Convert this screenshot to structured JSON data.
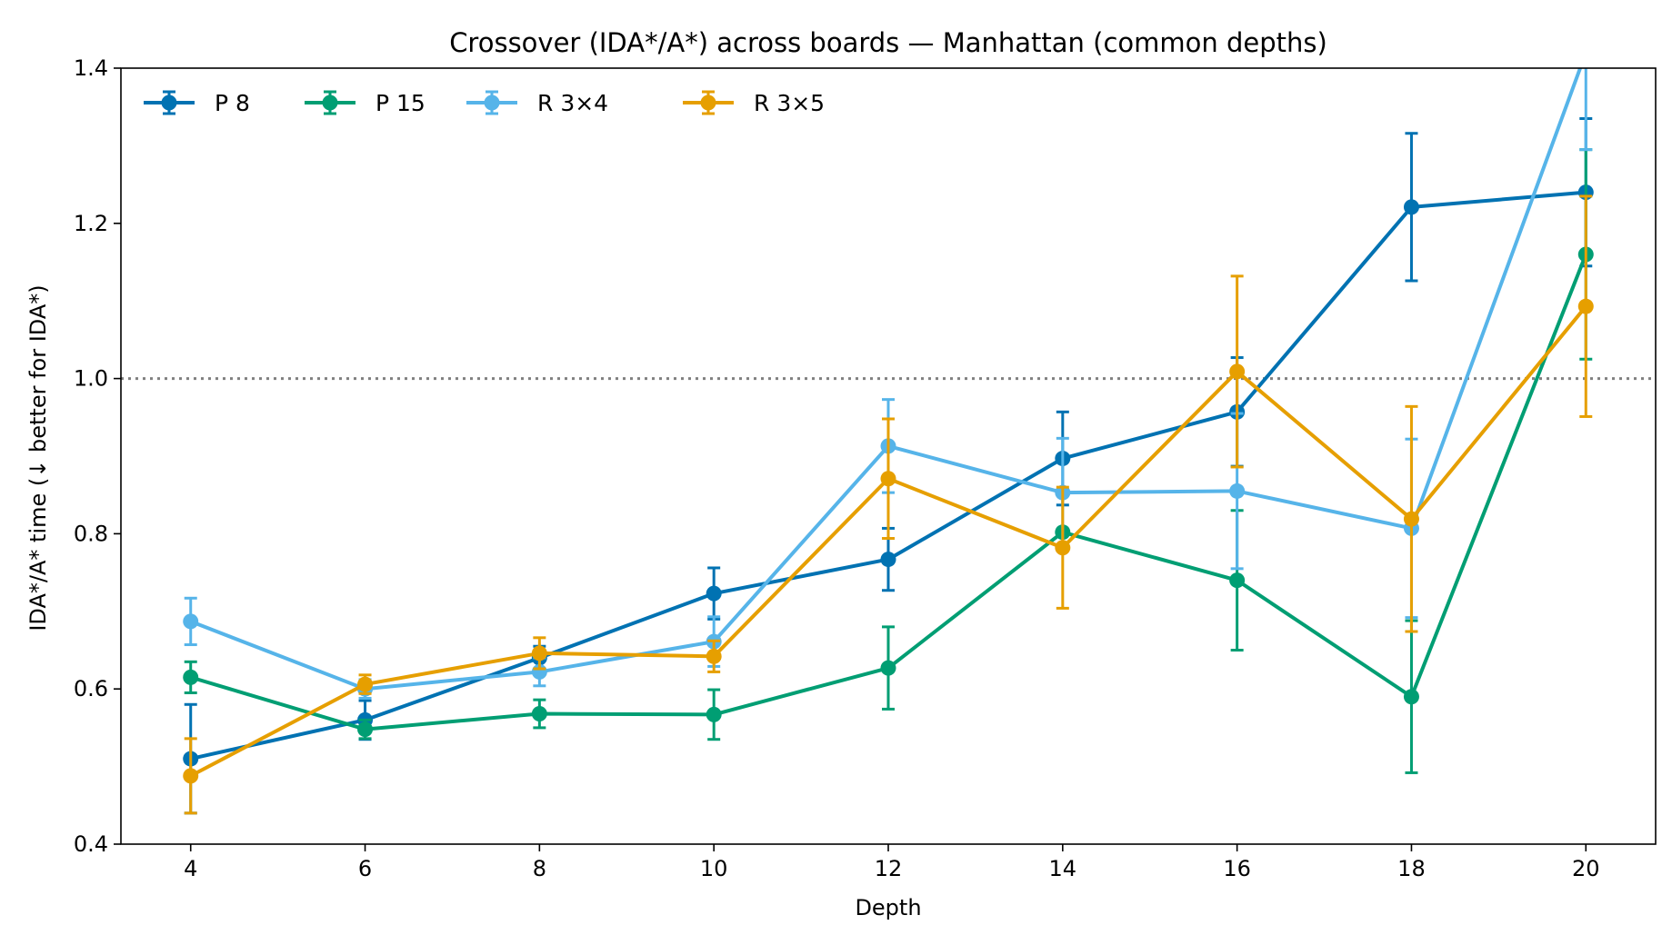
{
  "chart_data": {
    "type": "line",
    "title": "Crossover (IDA*/A*) across boards — Manhattan (common depths)",
    "xlabel": "Depth",
    "ylabel": "IDA*/A* time (↓ better for IDA*)",
    "x": [
      4,
      6,
      8,
      10,
      12,
      14,
      16,
      18,
      20
    ],
    "xticks": [
      "4",
      "6",
      "8",
      "10",
      "12",
      "14",
      "16",
      "18",
      "20"
    ],
    "xlim": [
      3.2,
      20.8
    ],
    "ylim": [
      0.4,
      1.4
    ],
    "yticks": [
      "0.4",
      "0.6",
      "0.8",
      "1.0",
      "1.2",
      "1.4"
    ],
    "reference_line": {
      "y": 1.0,
      "style": "dotted",
      "color": "#808080"
    },
    "legend": {
      "position": "top-left",
      "columns": 4
    },
    "series": [
      {
        "name": "P 8",
        "color": "#0072B2",
        "values": [
          0.51,
          0.56,
          0.64,
          0.723,
          0.767,
          0.897,
          0.957,
          1.221,
          1.24
        ],
        "err": [
          0.07,
          0.025,
          0.015,
          0.033,
          0.04,
          0.06,
          0.07,
          0.095,
          0.095
        ]
      },
      {
        "name": "P 15",
        "color": "#009E73",
        "values": [
          0.615,
          0.548,
          0.568,
          0.567,
          0.627,
          0.802,
          0.74,
          0.59,
          1.16
        ],
        "err": [
          0.02,
          0.012,
          0.018,
          0.032,
          0.053,
          0.0,
          0.09,
          0.098,
          0.135
        ]
      },
      {
        "name": "R 3×4",
        "color": "#56B4E9",
        "values": [
          0.687,
          0.6,
          0.622,
          0.661,
          0.913,
          0.853,
          0.855,
          0.807,
          1.42
        ],
        "err": [
          0.03,
          0.012,
          0.018,
          0.032,
          0.06,
          0.07,
          0.1,
          0.115,
          0.125
        ]
      },
      {
        "name": "R 3×5",
        "color": "#E69F00",
        "values": [
          0.488,
          0.606,
          0.646,
          0.642,
          0.871,
          0.782,
          1.009,
          0.819,
          1.093
        ],
        "err": [
          0.048,
          0.012,
          0.02,
          0.02,
          0.077,
          0.078,
          0.123,
          0.145,
          0.142
        ]
      }
    ]
  }
}
